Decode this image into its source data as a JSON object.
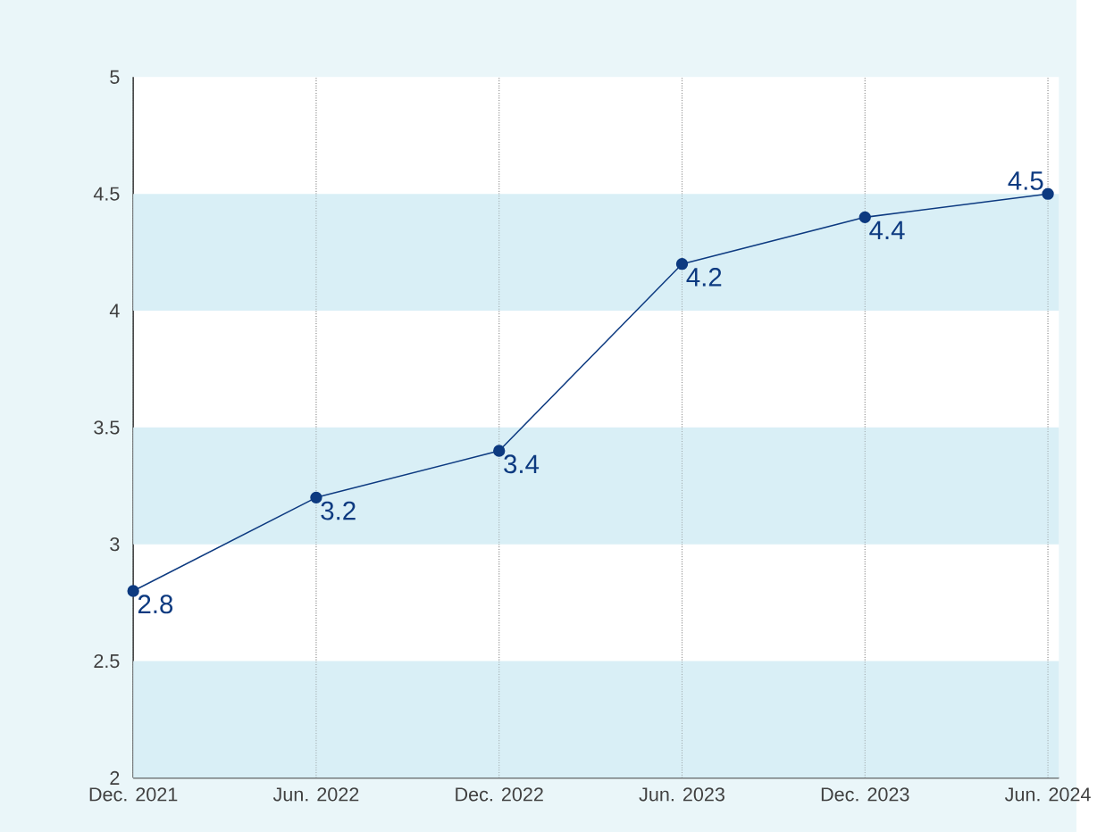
{
  "chart_data": {
    "type": "line",
    "categories": [
      "Dec. 2021",
      "Jun. 2022",
      "Dec. 2022",
      "Jun. 2023",
      "Dec. 2023",
      "Jun. 2024"
    ],
    "values": [
      2.8,
      3.2,
      3.4,
      4.2,
      4.4,
      4.5
    ],
    "data_labels": true,
    "color": "#0d3a80",
    "ylim": [
      2,
      5
    ],
    "yticks": [
      2,
      2.5,
      3,
      3.5,
      4,
      4.5,
      5
    ],
    "grid": "x",
    "marker": "circle",
    "line_style": "solid",
    "bands": [
      {
        "axis": "y",
        "from": 2,
        "to": 2.5,
        "color": "#d9eff6"
      },
      {
        "axis": "y",
        "from": 3,
        "to": 3.5,
        "color": "#d9eff6"
      },
      {
        "axis": "y",
        "from": 4,
        "to": 4.5,
        "color": "#d9eff6"
      }
    ]
  }
}
